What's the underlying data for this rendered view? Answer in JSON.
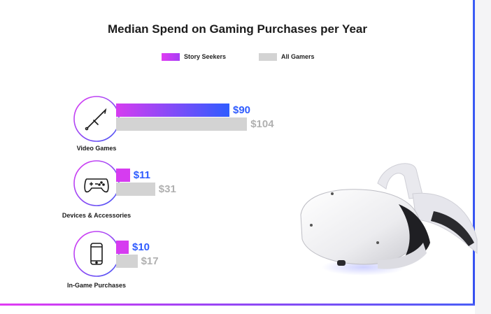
{
  "chart_data": {
    "type": "bar",
    "orientation": "horizontal",
    "title": "Median Spend on Gaming Purchases per Year",
    "xlabel": "",
    "ylabel": "",
    "xlim": [
      0,
      110
    ],
    "legend_position": "top",
    "grid": false,
    "categories": [
      "Video Games",
      "Devices & Accessories",
      "In-Game Purchases"
    ],
    "category_icons": [
      "sword-icon",
      "gamepad-icon",
      "smartphone-icon"
    ],
    "series": [
      {
        "name": "Story Seekers",
        "values": [
          90,
          11,
          10
        ],
        "value_labels": [
          "$90",
          "$11",
          "$10"
        ],
        "color": "#d63cf0",
        "color_end": "#2f5cff",
        "label_color": "#2f5cff"
      },
      {
        "name": "All Gamers",
        "values": [
          104,
          31,
          17
        ],
        "value_labels": [
          "$104",
          "$31",
          "$17"
        ],
        "color": "#d3d3d3",
        "label_color": "#b0b0b0"
      }
    ]
  }
}
